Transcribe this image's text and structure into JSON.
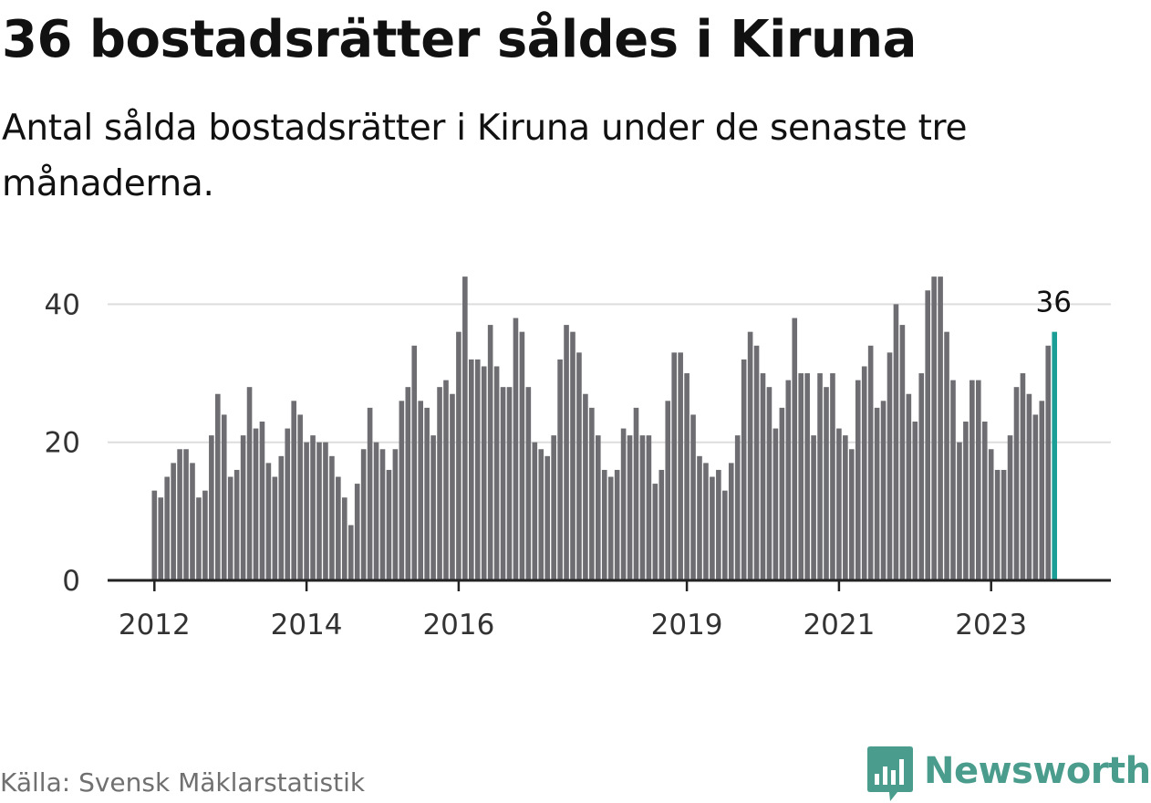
{
  "title": "36 bostadsrätter såldes i Kiruna",
  "subtitle": "Antal sålda bostadsrätter i Kiruna under de senaste tre månaderna.",
  "source": "Källa: Svensk Mäklarstatistik",
  "brand": {
    "name": "Newsworthy",
    "icon": "newsworthy-logo-icon",
    "color": "#4a9c8c"
  },
  "colors": {
    "bar": "#6d6d72",
    "highlight": "#1a9e95",
    "grid": "#dddddd",
    "axis": "#222222"
  },
  "chart_data": {
    "type": "bar",
    "start": "2012-01",
    "interval": "month",
    "values": [
      13,
      12,
      15,
      17,
      19,
      19,
      17,
      12,
      13,
      21,
      27,
      24,
      15,
      16,
      21,
      28,
      22,
      23,
      17,
      15,
      18,
      22,
      26,
      24,
      20,
      21,
      20,
      20,
      18,
      15,
      12,
      8,
      14,
      19,
      25,
      20,
      19,
      16,
      19,
      26,
      28,
      34,
      26,
      25,
      21,
      28,
      29,
      27,
      36,
      44,
      32,
      32,
      31,
      37,
      31,
      28,
      28,
      38,
      36,
      28,
      20,
      19,
      18,
      21,
      32,
      37,
      36,
      33,
      27,
      25,
      21,
      16,
      15,
      16,
      22,
      21,
      25,
      21,
      21,
      14,
      16,
      26,
      33,
      33,
      30,
      24,
      18,
      17,
      15,
      16,
      13,
      17,
      21,
      32,
      36,
      34,
      30,
      28,
      22,
      25,
      29,
      38,
      30,
      30,
      21,
      30,
      28,
      30,
      22,
      21,
      19,
      29,
      31,
      34,
      25,
      26,
      33,
      40,
      37,
      27,
      23,
      30,
      42,
      44,
      44,
      36,
      29,
      20,
      23,
      29,
      29,
      23,
      19,
      16,
      16,
      21,
      28,
      30,
      27,
      24,
      26,
      34,
      36
    ],
    "highlight": {
      "index": 142,
      "value": 36,
      "label": "36"
    },
    "xticks": [
      {
        "label": "2012",
        "index": 0
      },
      {
        "label": "2014",
        "index": 24
      },
      {
        "label": "2016",
        "index": 48
      },
      {
        "label": "2019",
        "index": 84
      },
      {
        "label": "2021",
        "index": 108
      },
      {
        "label": "2023",
        "index": 132
      }
    ],
    "yticks": [
      0,
      20,
      40
    ],
    "ylim": [
      0,
      46
    ],
    "grid": true,
    "xlabel": "",
    "ylabel": ""
  }
}
